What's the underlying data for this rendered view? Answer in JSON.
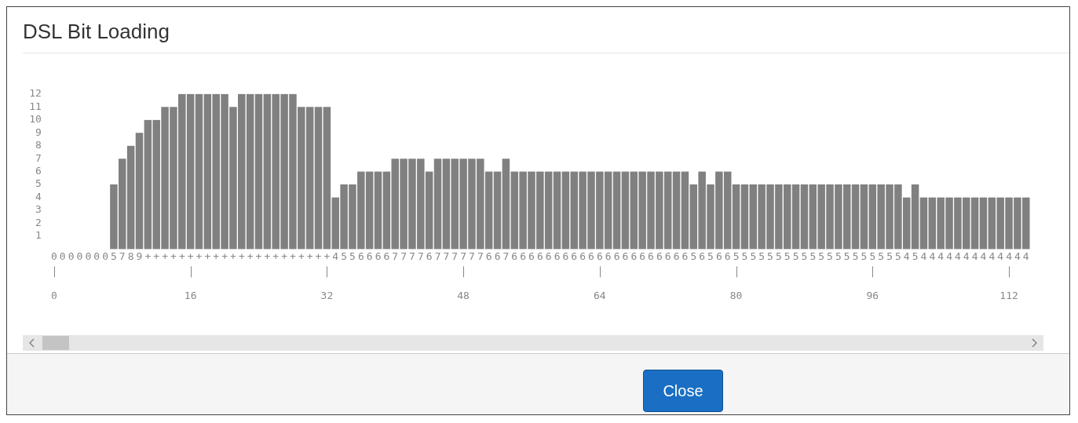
{
  "chart_data": {
    "type": "bar",
    "title": "DSL Bit Loading",
    "x": [
      0,
      1,
      2,
      3,
      4,
      5,
      6,
      7,
      8,
      9,
      10,
      11,
      12,
      13,
      14,
      15,
      16,
      17,
      18,
      19,
      20,
      21,
      22,
      23,
      24,
      25,
      26,
      27,
      28,
      29,
      30,
      31,
      32,
      33,
      34,
      35,
      36,
      37,
      38,
      39,
      40,
      41,
      42,
      43,
      44,
      45,
      46,
      47,
      48,
      49,
      50,
      51,
      52,
      53,
      54,
      55,
      56,
      57,
      58,
      59,
      60,
      61,
      62,
      63,
      64,
      65,
      66,
      67,
      68,
      69,
      70,
      71,
      72,
      73,
      74,
      75,
      76,
      77,
      78,
      79,
      80,
      81,
      82,
      83,
      84,
      85,
      86,
      87,
      88,
      89,
      90,
      91,
      92,
      93,
      94,
      95,
      96,
      97,
      98,
      99,
      100,
      101,
      102,
      103,
      104,
      105,
      106,
      107,
      108,
      109,
      110,
      111,
      112,
      113,
      114
    ],
    "values": [
      0,
      0,
      0,
      0,
      0,
      0,
      0,
      5,
      7,
      8,
      9,
      10,
      10,
      11,
      11,
      12,
      12,
      12,
      12,
      12,
      12,
      11,
      12,
      12,
      12,
      12,
      12,
      12,
      12,
      11,
      11,
      11,
      11,
      4,
      5,
      5,
      6,
      6,
      6,
      6,
      7,
      7,
      7,
      7,
      6,
      7,
      7,
      7,
      7,
      7,
      7,
      6,
      6,
      7,
      6,
      6,
      6,
      6,
      6,
      6,
      6,
      6,
      6,
      6,
      6,
      6,
      6,
      6,
      6,
      6,
      6,
      6,
      6,
      6,
      6,
      5,
      6,
      5,
      6,
      6,
      5,
      5,
      5,
      5,
      5,
      5,
      5,
      5,
      5,
      5,
      5,
      5,
      5,
      5,
      5,
      5,
      5,
      5,
      5,
      5,
      4,
      5,
      4,
      4,
      4,
      4,
      4,
      4,
      4,
      4,
      4,
      4,
      4,
      4,
      4
    ],
    "value_labels": [
      "0",
      "0",
      "0",
      "0",
      "0",
      "0",
      "0",
      "5",
      "7",
      "8",
      "9",
      "+",
      "+",
      "+",
      "+",
      "+",
      "+",
      "+",
      "+",
      "+",
      "+",
      "+",
      "+",
      "+",
      "+",
      "+",
      "+",
      "+",
      "+",
      "+",
      "+",
      "+",
      "+",
      "4",
      "5",
      "5",
      "6",
      "6",
      "6",
      "6",
      "7",
      "7",
      "7",
      "7",
      "6",
      "7",
      "7",
      "7",
      "7",
      "7",
      "7",
      "6",
      "6",
      "7",
      "6",
      "6",
      "6",
      "6",
      "6",
      "6",
      "6",
      "6",
      "6",
      "6",
      "6",
      "6",
      "6",
      "6",
      "6",
      "6",
      "6",
      "6",
      "6",
      "6",
      "6",
      "5",
      "6",
      "5",
      "6",
      "6",
      "5",
      "5",
      "5",
      "5",
      "5",
      "5",
      "5",
      "5",
      "5",
      "5",
      "5",
      "5",
      "5",
      "5",
      "5",
      "5",
      "5",
      "5",
      "5",
      "5",
      "4",
      "5",
      "4",
      "4",
      "4",
      "4",
      "4",
      "4",
      "4",
      "4",
      "4",
      "4",
      "4",
      "4",
      "4"
    ],
    "color": "#808080",
    "xlim": [
      0,
      114
    ],
    "xticks": [
      0,
      16,
      32,
      48,
      64,
      80,
      96,
      112
    ],
    "ylim": [
      0,
      12
    ],
    "yticks": [
      1,
      2,
      3,
      4,
      5,
      6,
      7,
      8,
      9,
      10,
      11,
      12
    ],
    "annotations": [
      "Close"
    ]
  }
}
